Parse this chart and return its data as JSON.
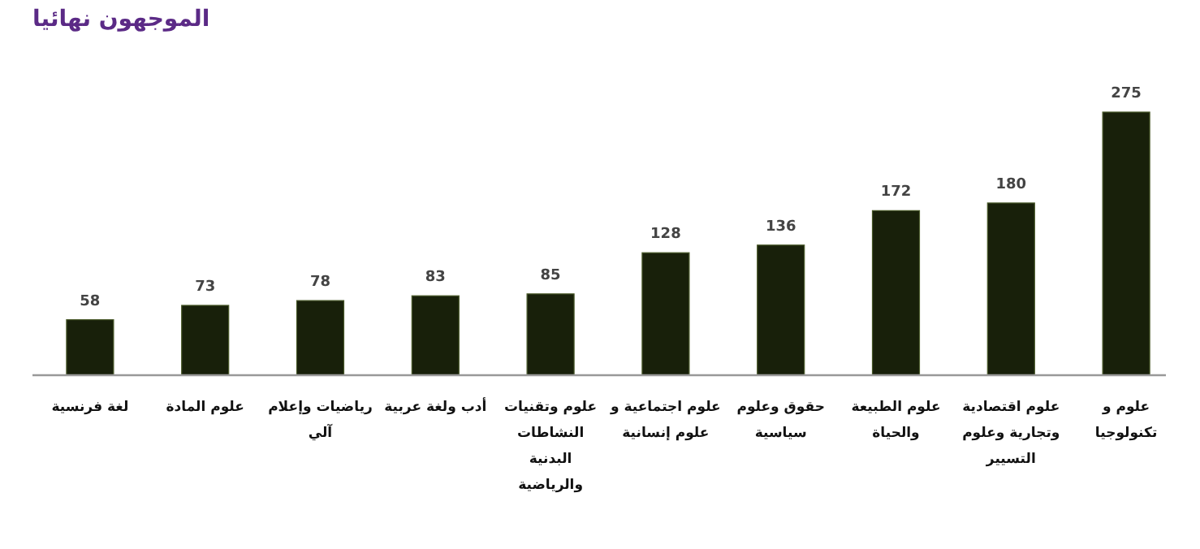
{
  "chart_data": {
    "type": "bar",
    "title": "الموجهون نهائيا",
    "categories": [
      "لغة فرنسية",
      "علوم المادة",
      "رياضيات وإعلام آلي",
      "أدب ولغة عربية",
      "علوم وتقنيات النشاطات البدنية والرياضية",
      "علوم اجتماعية و علوم إنسانية",
      "حقوق وعلوم سياسية",
      "علوم الطبيعة والحياة",
      "علوم اقتصادية وتجارية وعلوم التسيير",
      "علوم و تكنولوجيا"
    ],
    "values": [
      58,
      73,
      78,
      83,
      85,
      128,
      136,
      172,
      180,
      275
    ],
    "color": "#18200a",
    "data_labels": true
  }
}
